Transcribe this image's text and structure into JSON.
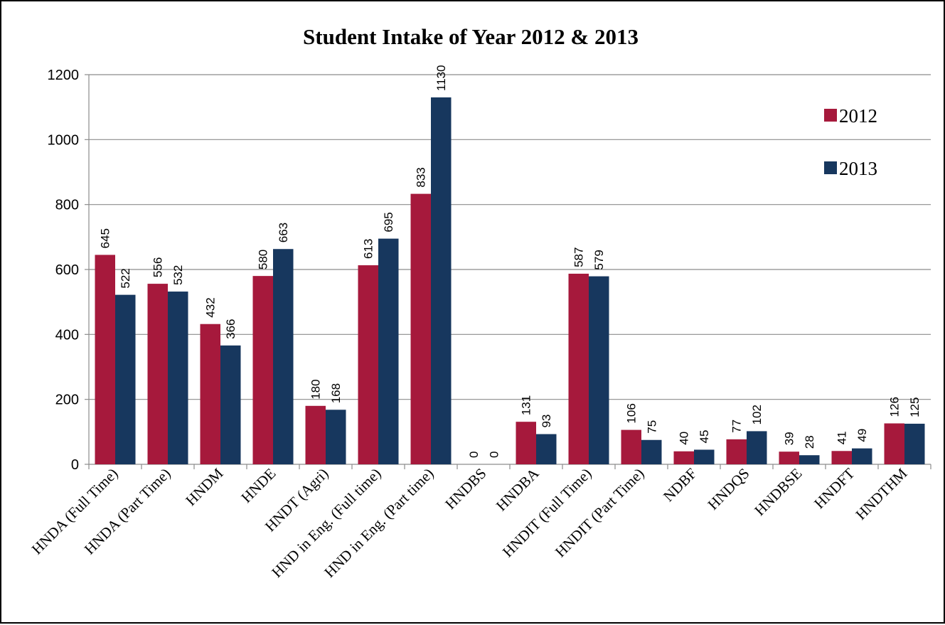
{
  "chart_data": {
    "type": "bar",
    "title": "Student Intake of Year 2012 & 2013",
    "xlabel": "",
    "ylabel": "",
    "ylim": [
      0,
      1200
    ],
    "yticks": [
      0,
      200,
      400,
      600,
      800,
      1000,
      1200
    ],
    "grid": true,
    "legend_position": "top-right",
    "categories": [
      "HNDA (Full Time)",
      "HNDA (Part Time)",
      "HNDM",
      "HNDE",
      "HNDT (Agri)",
      "HND in Eng. (Full time)",
      "HND in Eng. (Part time)",
      "HNDBS",
      "HNDBA",
      "HNDIT (Full Time)",
      "HNDIT (Part Time)",
      "NDBF",
      "HNDQS",
      "HNDBSE",
      "HNDFT",
      "HNDTHM"
    ],
    "series": [
      {
        "name": "2012",
        "color": "#A6193C",
        "values": [
          645,
          556,
          432,
          580,
          180,
          613,
          833,
          0,
          131,
          587,
          106,
          40,
          77,
          39,
          41,
          126
        ]
      },
      {
        "name": "2013",
        "color": "#17375E",
        "values": [
          522,
          532,
          366,
          663,
          168,
          695,
          1130,
          0,
          93,
          579,
          75,
          45,
          102,
          28,
          49,
          125
        ]
      }
    ]
  }
}
